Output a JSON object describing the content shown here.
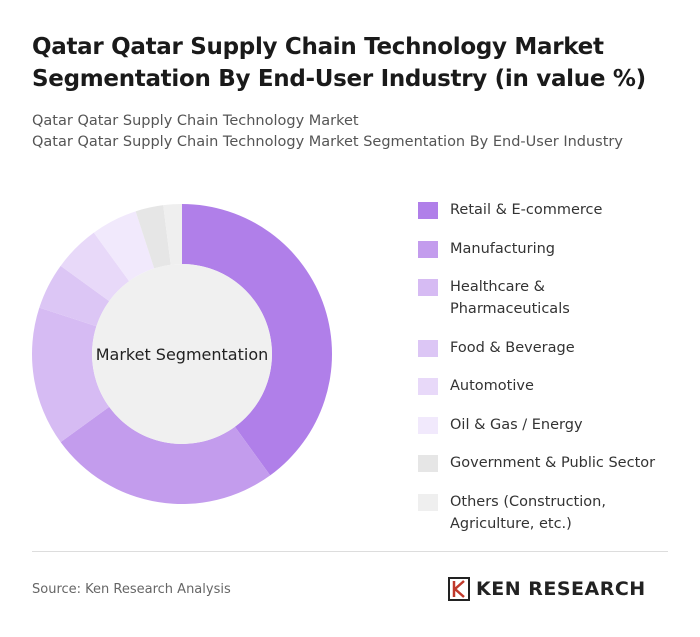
{
  "chart_data": {
    "type": "donut",
    "title": "Qatar Qatar Supply Chain Technology Market Segmentation By End-User Industry (in value %)",
    "subtitle": [
      "Qatar Qatar Supply Chain Technology Market",
      "Qatar Qatar Supply Chain Technology Market Segmentation By End-User Industry"
    ],
    "center_label": "Market Segmentation",
    "categories": [
      "Retail & E-commerce",
      "Manufacturing",
      "Healthcare & Pharmaceuticals",
      "Food & Beverage",
      "Automotive",
      "Oil & Gas / Energy",
      "Government & Public Sector",
      "Others (Construction, Agriculture, etc.)"
    ],
    "values": [
      40,
      25,
      15,
      5,
      5,
      5,
      3,
      2
    ],
    "colors": [
      "#b07fe9",
      "#c39ced",
      "#d6bbf3",
      "#dcc6f5",
      "#e8d9f9",
      "#f1e9fc",
      "#e6e6e6",
      "#efefef"
    ]
  },
  "source": "Source: Ken Research Analysis",
  "logo": "KEN RESEARCH"
}
